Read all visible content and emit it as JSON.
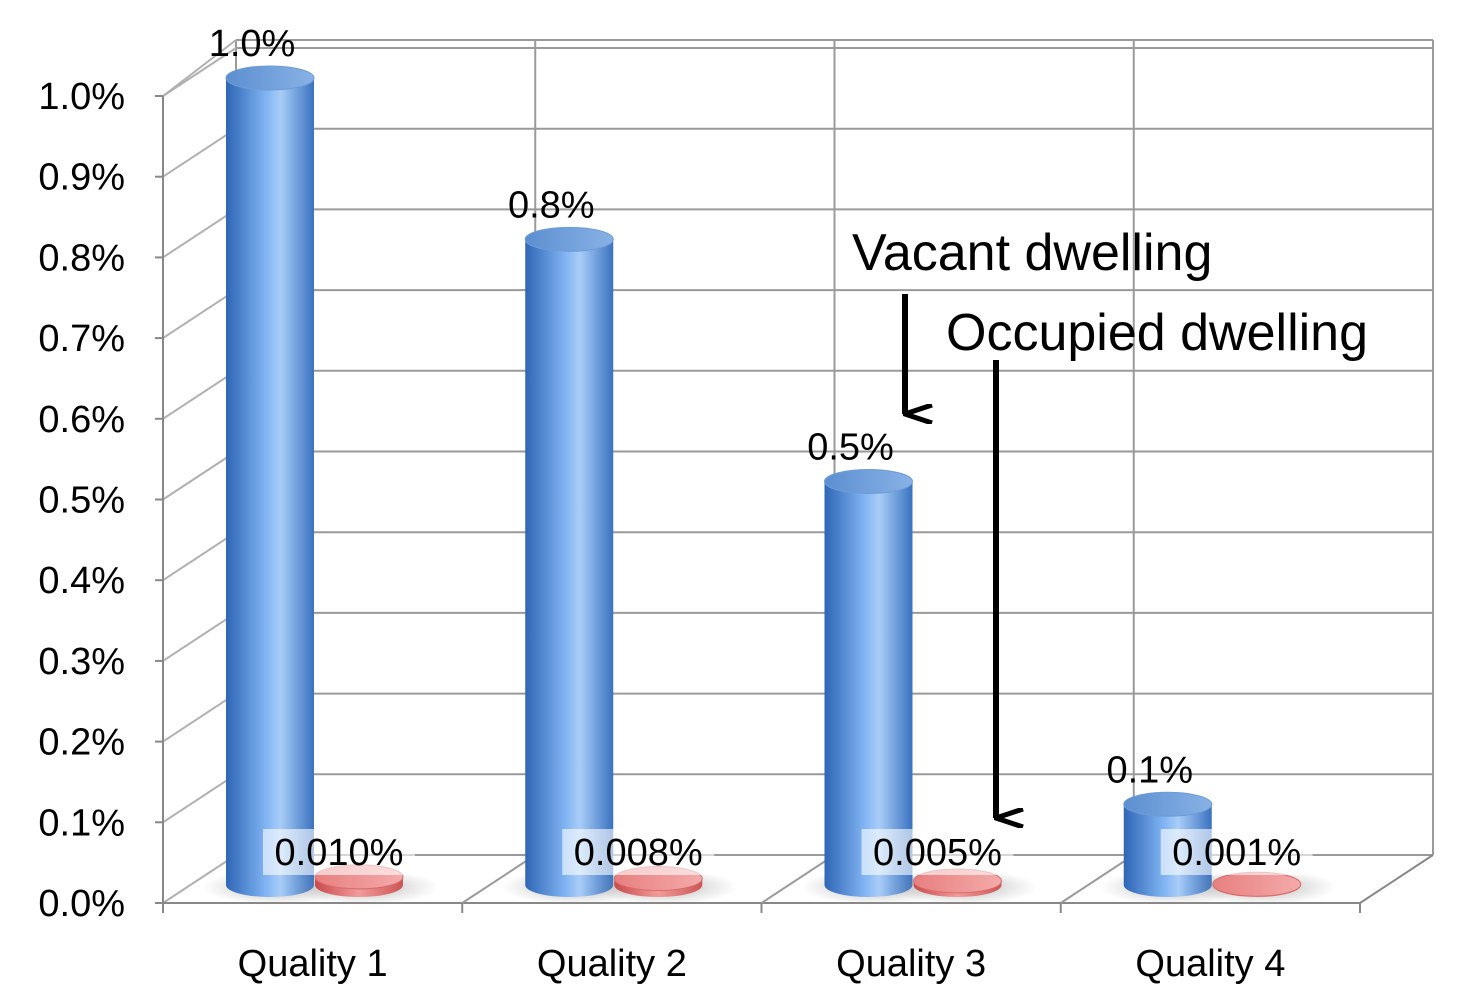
{
  "chart_data": {
    "type": "bar",
    "style": "3d-cylinder",
    "categories": [
      "Quality 1",
      "Quality 2",
      "Quality 3",
      "Quality 4"
    ],
    "series": [
      {
        "name": "Vacant dwelling",
        "values": [
          1.0,
          0.8,
          0.5,
          0.1
        ],
        "labels": [
          "1.0%",
          "0.8%",
          "0.5%",
          "0.1%"
        ],
        "color": "#4a86d4"
      },
      {
        "name": "Occupied dwelling",
        "values": [
          0.01,
          0.008,
          0.005,
          0.001
        ],
        "labels": [
          "0.010%",
          "0.008%",
          "0.005%",
          "0.001%"
        ],
        "color": "#e06666"
      }
    ],
    "yticks": [
      "0.0%",
      "0.1%",
      "0.2%",
      "0.3%",
      "0.4%",
      "0.5%",
      "0.6%",
      "0.7%",
      "0.8%",
      "0.9%",
      "1.0%"
    ],
    "ylim": [
      0,
      1.0
    ],
    "grid": true,
    "annotations": [
      "Vacant dwelling",
      "Occupied dwelling"
    ]
  }
}
